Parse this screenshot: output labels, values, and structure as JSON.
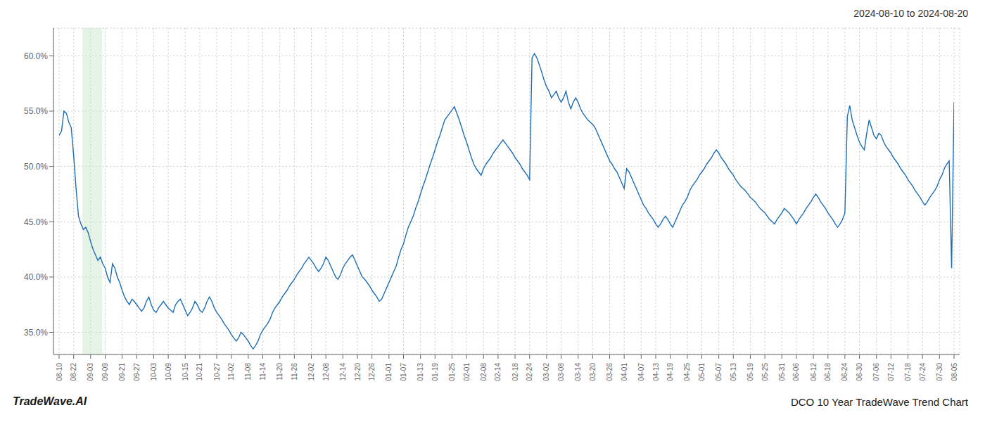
{
  "chart_data": {
    "type": "line",
    "title": "2024-08-10 to 2024-08-20",
    "annotations": [
      "TradeWave.AI",
      "DCO 10 Year TradeWave Trend Chart"
    ],
    "color": "#1f6eb5",
    "grid": true,
    "highlight": {
      "x": [
        9.62,
        17.76
      ],
      "color": "#c8e6c9"
    },
    "ylim": [
      0.33,
      0.625
    ],
    "yticks": [
      {
        "value": 0.35,
        "label": "35.0%"
      },
      {
        "value": 0.4,
        "label": "40.0%"
      },
      {
        "value": 0.45,
        "label": "45.0%"
      },
      {
        "value": 0.5,
        "label": "50.0%"
      },
      {
        "value": 0.55,
        "label": "55.0%"
      },
      {
        "value": 0.6,
        "label": "60.0%"
      }
    ],
    "categories": [
      "08-10",
      null,
      null,
      null,
      null,
      null,
      "08-22",
      null,
      null,
      null,
      null,
      null,
      null,
      "09-03",
      null,
      null,
      null,
      null,
      null,
      "09-09",
      null,
      null,
      null,
      null,
      null,
      null,
      "09-21",
      null,
      null,
      null,
      null,
      null,
      "09-27",
      null,
      null,
      null,
      null,
      null,
      null,
      "10-03",
      null,
      null,
      null,
      null,
      null,
      "10-09",
      null,
      null,
      null,
      null,
      null,
      null,
      "10-15",
      null,
      null,
      null,
      null,
      null,
      "10-21",
      null,
      null,
      null,
      null,
      null,
      null,
      "10-27",
      null,
      null,
      null,
      null,
      null,
      "11-02",
      null,
      null,
      null,
      null,
      null,
      null,
      "11-08",
      null,
      null,
      null,
      null,
      null,
      "11-14",
      null,
      null,
      null,
      null,
      null,
      null,
      "11-20",
      null,
      null,
      null,
      null,
      null,
      "11-26",
      null,
      null,
      null,
      null,
      null,
      null,
      "12-02",
      null,
      null,
      null,
      null,
      null,
      "12-08",
      null,
      null,
      null,
      null,
      null,
      null,
      "12-14",
      null,
      null,
      null,
      null,
      null,
      "12-20",
      null,
      null,
      null,
      null,
      null,
      "12-26",
      null,
      null,
      null,
      null,
      null,
      null,
      "01-01",
      null,
      null,
      null,
      null,
      null,
      "01-07",
      null,
      null,
      null,
      null,
      null,
      null,
      "01-13",
      null,
      null,
      null,
      null,
      null,
      "01-19",
      null,
      null,
      null,
      null,
      null,
      null,
      "01-25",
      null,
      null,
      null,
      null,
      null,
      "02-01",
      null,
      null,
      null,
      null,
      null,
      null,
      "02-08",
      null,
      null,
      null,
      null,
      null,
      "02-14",
      null,
      null,
      null,
      null,
      null,
      null,
      "02-18",
      null,
      null,
      null,
      null,
      null,
      "02-24",
      null,
      null,
      null,
      null,
      null,
      null,
      "03-02",
      null,
      null,
      null,
      null,
      null,
      "03-08",
      null,
      null,
      null,
      null,
      null,
      null,
      "03-14",
      null,
      null,
      null,
      null,
      null,
      "03-20",
      null,
      null,
      null,
      null,
      null,
      null,
      "03-26",
      null,
      null,
      null,
      null,
      null,
      "04-01",
      null,
      null,
      null,
      null,
      null,
      null,
      "04-07",
      null,
      null,
      null,
      null,
      null,
      "04-13",
      null,
      null,
      null,
      null,
      null,
      "04-19",
      null,
      null,
      null,
      null,
      null,
      null,
      "04-25",
      null,
      null,
      null,
      null,
      null,
      "05-01",
      null,
      null,
      null,
      null,
      null,
      null,
      "05-07",
      null,
      null,
      null,
      null,
      null,
      "05-13",
      null,
      null,
      null,
      null,
      null,
      null,
      "05-19",
      null,
      null,
      null,
      null,
      null,
      "05-25",
      null,
      null,
      null,
      null,
      null,
      null,
      "05-31",
      null,
      null,
      null,
      null,
      null,
      "06-06",
      null,
      null,
      null,
      null,
      null,
      null,
      "06-12",
      null,
      null,
      null,
      null,
      null,
      "06-18",
      null,
      null,
      null,
      null,
      null,
      null,
      "06-24",
      null,
      null,
      null,
      null,
      null,
      "06-30",
      null,
      null,
      null,
      null,
      null,
      null,
      "07-06",
      null,
      null,
      null,
      null,
      null,
      "07-12",
      null,
      null,
      null,
      null,
      null,
      null,
      "07-18",
      null,
      null,
      null,
      null,
      null,
      "07-24",
      null,
      null,
      null,
      null,
      null,
      null,
      "07-30",
      null,
      null,
      null,
      null,
      null,
      "08-05"
    ],
    "values": [
      0.528,
      0.532,
      0.55,
      0.548,
      0.54,
      0.535,
      0.51,
      0.48,
      0.455,
      0.448,
      0.443,
      0.445,
      0.44,
      0.432,
      0.425,
      0.42,
      0.415,
      0.418,
      0.412,
      0.408,
      0.4,
      0.395,
      0.412,
      0.408,
      0.4,
      0.395,
      0.388,
      0.382,
      0.378,
      0.375,
      0.38,
      0.378,
      0.375,
      0.372,
      0.369,
      0.372,
      0.378,
      0.382,
      0.375,
      0.37,
      0.368,
      0.372,
      0.375,
      0.378,
      0.375,
      0.372,
      0.37,
      0.368,
      0.375,
      0.378,
      0.38,
      0.375,
      0.37,
      0.365,
      0.368,
      0.372,
      0.378,
      0.375,
      0.37,
      0.368,
      0.372,
      0.378,
      0.382,
      0.378,
      0.372,
      0.368,
      0.365,
      0.362,
      0.358,
      0.355,
      0.352,
      0.348,
      0.345,
      0.342,
      0.345,
      0.35,
      0.348,
      0.345,
      0.342,
      0.338,
      0.335,
      0.338,
      0.342,
      0.348,
      0.352,
      0.355,
      0.358,
      0.362,
      0.368,
      0.372,
      0.375,
      0.378,
      0.382,
      0.385,
      0.388,
      0.392,
      0.395,
      0.398,
      0.402,
      0.405,
      0.408,
      0.412,
      0.415,
      0.418,
      0.415,
      0.412,
      0.408,
      0.405,
      0.408,
      0.412,
      0.418,
      0.415,
      0.41,
      0.405,
      0.4,
      0.398,
      0.402,
      0.408,
      0.412,
      0.415,
      0.418,
      0.42,
      0.415,
      0.41,
      0.405,
      0.4,
      0.398,
      0.395,
      0.392,
      0.388,
      0.385,
      0.382,
      0.378,
      0.38,
      0.385,
      0.39,
      0.395,
      0.4,
      0.405,
      0.41,
      0.418,
      0.425,
      0.43,
      0.438,
      0.445,
      0.45,
      0.455,
      0.462,
      0.468,
      0.475,
      0.482,
      0.488,
      0.495,
      0.502,
      0.508,
      0.515,
      0.522,
      0.528,
      0.535,
      0.542,
      0.545,
      0.548,
      0.551,
      0.554,
      0.548,
      0.542,
      0.535,
      0.528,
      0.522,
      0.515,
      0.508,
      0.502,
      0.498,
      0.495,
      0.492,
      0.498,
      0.502,
      0.505,
      0.508,
      0.512,
      0.515,
      0.518,
      0.521,
      0.524,
      0.521,
      0.518,
      0.515,
      0.512,
      0.508,
      0.505,
      0.502,
      0.498,
      0.495,
      0.492,
      0.488,
      0.598,
      0.602,
      0.598,
      0.592,
      0.585,
      0.578,
      0.572,
      0.568,
      0.562,
      0.565,
      0.568,
      0.562,
      0.558,
      0.562,
      0.568,
      0.558,
      0.552,
      0.558,
      0.562,
      0.558,
      0.552,
      0.548,
      0.545,
      0.542,
      0.54,
      0.538,
      0.535,
      0.53,
      0.525,
      0.52,
      0.515,
      0.51,
      0.505,
      0.502,
      0.498,
      0.495,
      0.49,
      0.485,
      0.48,
      0.498,
      0.495,
      0.49,
      0.485,
      0.48,
      0.475,
      0.47,
      0.465,
      0.462,
      0.458,
      0.455,
      0.452,
      0.448,
      0.445,
      0.448,
      0.452,
      0.455,
      0.452,
      0.448,
      0.445,
      0.45,
      0.455,
      0.46,
      0.465,
      0.468,
      0.472,
      0.478,
      0.482,
      0.485,
      0.488,
      0.492,
      0.495,
      0.498,
      0.502,
      0.505,
      0.508,
      0.512,
      0.515,
      0.512,
      0.508,
      0.505,
      0.502,
      0.498,
      0.495,
      0.492,
      0.488,
      0.485,
      0.482,
      0.48,
      0.478,
      0.475,
      0.472,
      0.47,
      0.468,
      0.465,
      0.462,
      0.46,
      0.458,
      0.455,
      0.452,
      0.45,
      0.448,
      0.452,
      0.455,
      0.458,
      0.462,
      0.46,
      0.458,
      0.455,
      0.452,
      0.448,
      0.452,
      0.455,
      0.458,
      0.462,
      0.465,
      0.468,
      0.472,
      0.475,
      0.472,
      0.468,
      0.465,
      0.462,
      0.458,
      0.455,
      0.452,
      0.448,
      0.445,
      0.448,
      0.452,
      0.458,
      0.545,
      0.555,
      0.542,
      0.535,
      0.528,
      0.522,
      0.518,
      0.515,
      0.53,
      0.542,
      0.535,
      0.528,
      0.525,
      0.53,
      0.528,
      0.522,
      0.518,
      0.515,
      0.512,
      0.508,
      0.505,
      0.502,
      0.498,
      0.495,
      0.492,
      0.488,
      0.485,
      0.482,
      0.478,
      0.475,
      0.472,
      0.468,
      0.465,
      0.468,
      0.472,
      0.475,
      0.478,
      0.482,
      0.488,
      0.492,
      0.498,
      0.502,
      0.505,
      0.408,
      0.558
    ]
  }
}
